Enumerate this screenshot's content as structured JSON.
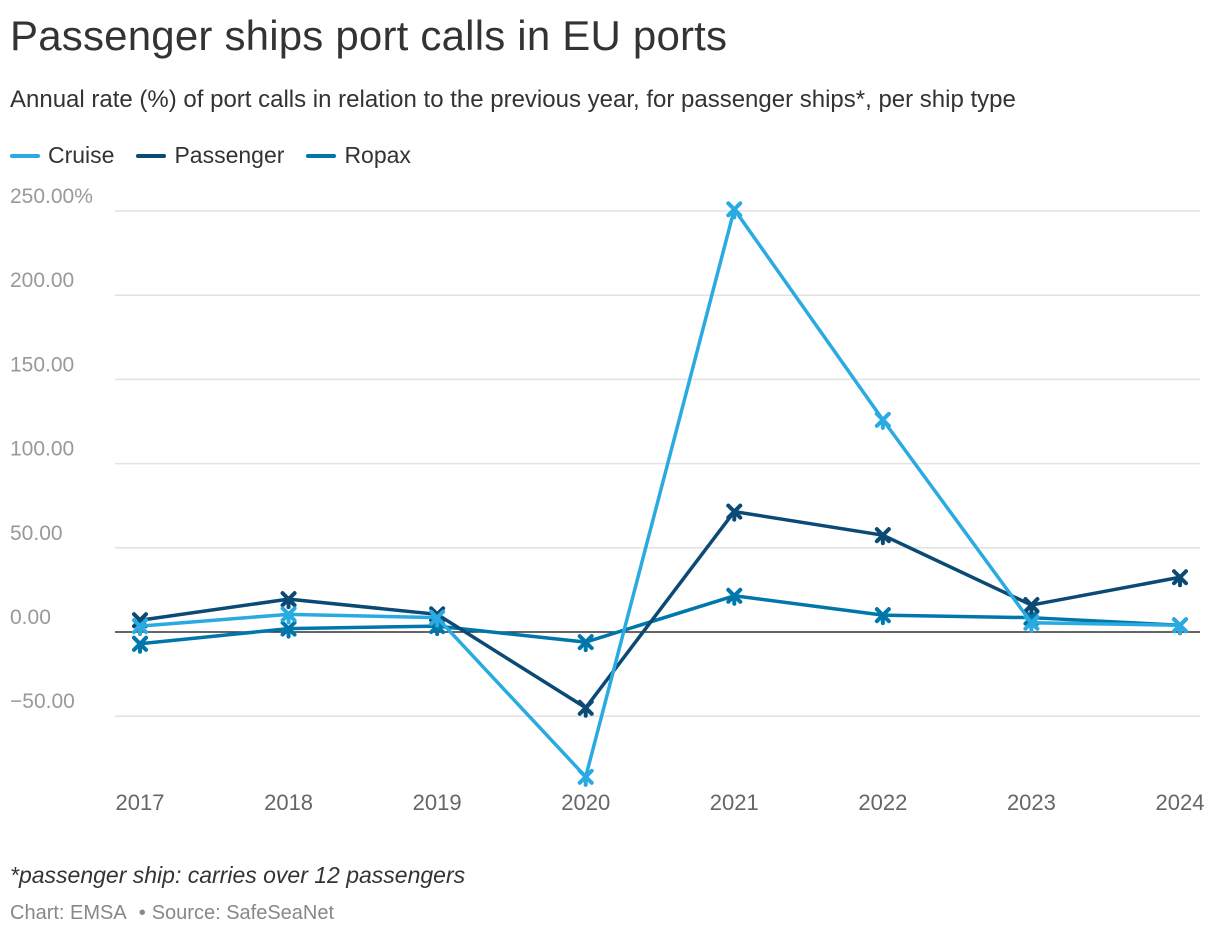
{
  "title": "Passenger ships port calls in EU ports",
  "subtitle": "Annual rate (%) of port calls in relation to the previous year, for passenger ships*, per ship type",
  "footnote": "*passenger ship: carries over 12 passengers",
  "credits": {
    "chart": "Chart: EMSA",
    "source": "Source: SafeSeaNet"
  },
  "chart_data": {
    "type": "line",
    "title": "Passenger ships port calls in EU ports",
    "xlabel": "",
    "ylabel": "",
    "x": [
      "2017",
      "2018",
      "2019",
      "2020",
      "2021",
      "2022",
      "2023",
      "2024"
    ],
    "ylim": [
      -90,
      255
    ],
    "yticks": [
      -50,
      0,
      50,
      100,
      150,
      200,
      250
    ],
    "ytick_labels": [
      "−50.00",
      "0.00",
      "50.00",
      "100.00",
      "150.00",
      "200.00",
      "250.00%"
    ],
    "grid": true,
    "legend_position": "top-left",
    "series": [
      {
        "name": "Cruise",
        "color": "#29abe2",
        "values": [
          3.5,
          10.5,
          8.5,
          -86,
          251,
          126,
          5.5,
          4
        ]
      },
      {
        "name": "Passenger",
        "color": "#0b4a75",
        "values": [
          7,
          19.5,
          10.5,
          -45,
          71.5,
          57.5,
          16,
          32.5
        ]
      },
      {
        "name": "Ropax",
        "color": "#0077aa",
        "values": [
          -7,
          2,
          3.5,
          -6,
          21.5,
          10,
          8.5,
          4
        ]
      }
    ]
  }
}
